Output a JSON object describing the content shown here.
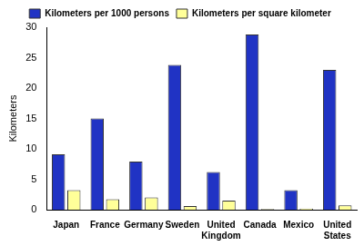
{
  "chart_data": {
    "type": "bar",
    "y_label": "Kilometers",
    "categories": [
      "Japan",
      "France",
      "Germany",
      "Sweden",
      "United Kingdom",
      "Canada",
      "Mexico",
      "United States"
    ],
    "series": [
      {
        "name": "Kilometers per 1000 persons",
        "color": "#2033c4",
        "values": [
          9.1,
          15,
          7.9,
          23.8,
          6.2,
          28.8,
          3.2,
          23
        ]
      },
      {
        "name": "Kilometers per square kilometer",
        "color": "#ffff99",
        "values": [
          3.2,
          1.7,
          2.0,
          0.6,
          1.5,
          0.1,
          0.2,
          0.7
        ]
      }
    ],
    "ylim": [
      0,
      30
    ],
    "yticks": [
      0,
      5,
      10,
      15,
      20,
      25,
      30
    ],
    "grid": false,
    "legend": "top"
  }
}
